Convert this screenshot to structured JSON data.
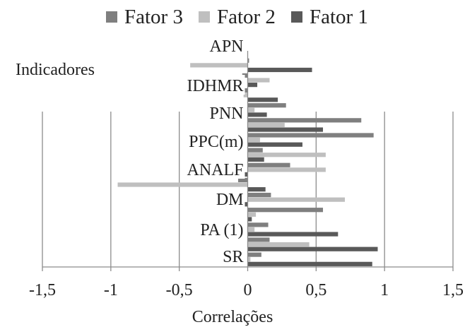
{
  "chart_data": {
    "type": "bar",
    "orientation": "horizontal",
    "xlabel": "Correlações",
    "ylabel": "Indicadores",
    "xlim": [
      -1.5,
      1.5
    ],
    "xticks": [
      -1.5,
      -1,
      -0.5,
      0,
      0.5,
      1,
      1.5
    ],
    "xtick_labels": [
      "-1,5",
      "-1",
      "-0,5",
      "0",
      "0,5",
      "1",
      "1,5"
    ],
    "grid": "vertical",
    "legend_position": "top",
    "category_labels": [
      "APN",
      "IDHMR",
      "PNN",
      "PPC(m)",
      "ANALF",
      "DM",
      "PA (1)",
      "SR"
    ],
    "rows": [
      "r1",
      "r2",
      "r3",
      "r4",
      "r5",
      "r6",
      "r7",
      "r8",
      "r9",
      "r10",
      "r11",
      "r12",
      "r13",
      "r14"
    ],
    "series": [
      {
        "name": "Fator 3",
        "color": "#7f7f7f",
        "values": [
          0.01,
          -0.04,
          -0.05,
          0.28,
          0.83,
          0.92,
          0.11,
          0.31,
          -0.07,
          0.17,
          0.55,
          0.15,
          0.16,
          0.1
        ]
      },
      {
        "name": "Fator 2",
        "color": "#bfbfbf",
        "values": [
          -0.42,
          0.16,
          -0.03,
          0.05,
          0.27,
          0.09,
          0.57,
          0.57,
          -0.95,
          0.71,
          0.06,
          0.05,
          0.45,
          0.02
        ]
      },
      {
        "name": "Fator 1",
        "color": "#595959",
        "values": [
          0.47,
          0.07,
          0.22,
          0.14,
          0.55,
          0.4,
          0.12,
          -0.21,
          0.13,
          -0.1,
          0.03,
          0.66,
          0.95,
          0.91
        ]
      }
    ],
    "legend_order": [
      "Fator 3",
      "Fator 2",
      "Fator 1"
    ]
  }
}
